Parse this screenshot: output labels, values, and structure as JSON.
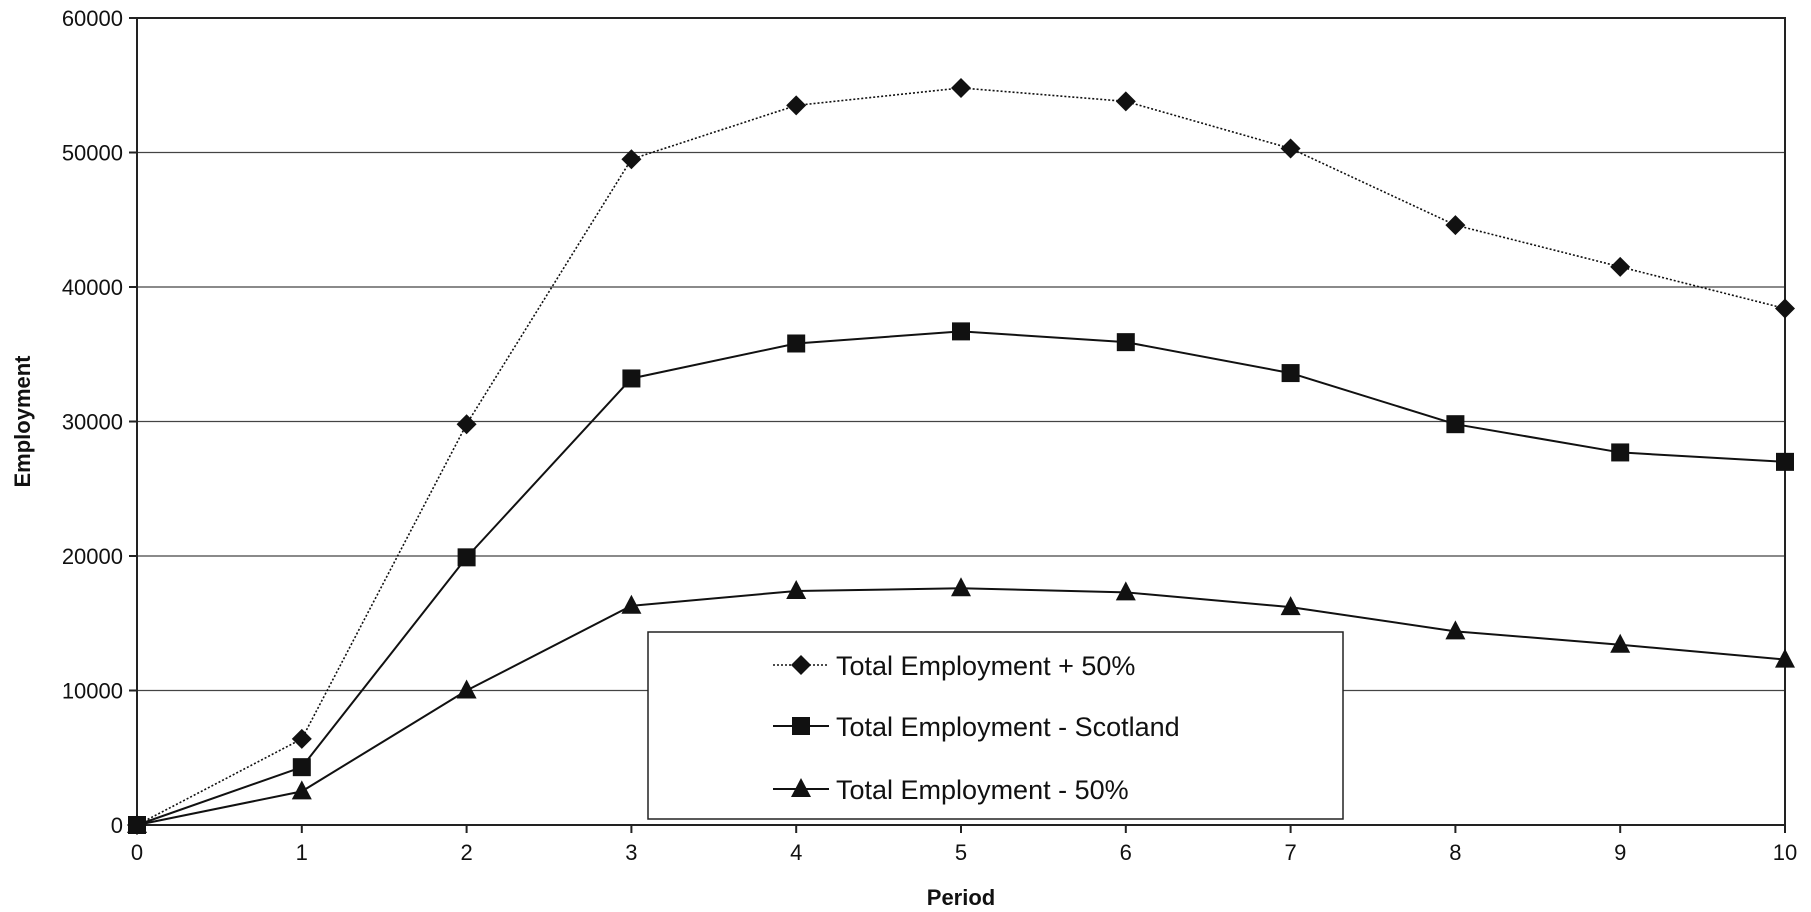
{
  "chart_data": {
    "type": "line",
    "xlabel": "Period",
    "ylabel": "Employment",
    "x": [
      0,
      1,
      2,
      3,
      4,
      5,
      6,
      7,
      8,
      9,
      10
    ],
    "xlim": [
      0,
      10
    ],
    "ylim": [
      0,
      60000
    ],
    "x_ticks": [
      0,
      1,
      2,
      3,
      4,
      5,
      6,
      7,
      8,
      9,
      10
    ],
    "y_ticks": [
      0,
      10000,
      20000,
      30000,
      40000,
      50000,
      60000
    ],
    "grid": "horizontal",
    "legend_position": "bottom-center",
    "series": [
      {
        "name": "Total Employment + 50%",
        "marker": "diamond",
        "line_style": "dotted",
        "color": "#111111",
        "values": [
          0,
          6400,
          29800,
          49500,
          53500,
          54800,
          53800,
          50300,
          44600,
          41500,
          38400
        ]
      },
      {
        "name": "Total Employment - Scotland",
        "marker": "square",
        "line_style": "solid",
        "color": "#111111",
        "values": [
          0,
          4300,
          19900,
          33200,
          35800,
          36700,
          35900,
          33600,
          29800,
          27700,
          27000
        ]
      },
      {
        "name": "Total Employment - 50%",
        "marker": "triangle",
        "line_style": "solid",
        "color": "#111111",
        "values": [
          0,
          2500,
          10000,
          16300,
          17400,
          17600,
          17300,
          16200,
          14400,
          13400,
          12300
        ]
      }
    ]
  }
}
